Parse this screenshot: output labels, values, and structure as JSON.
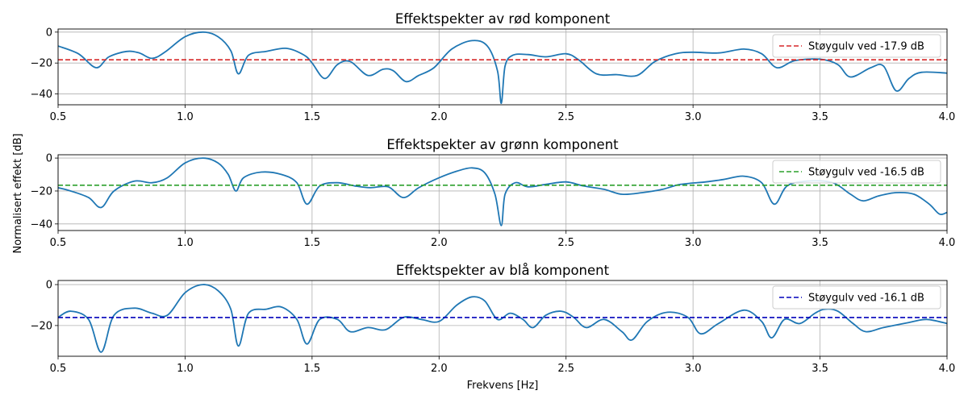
{
  "figure": {
    "ylabel": "Normalisert effekt [dB]",
    "xlabel": "Frekvens [Hz]"
  },
  "chart_data": [
    {
      "type": "line",
      "title": "Effektspekter av rød komponent",
      "xlim": [
        0.5,
        4.0
      ],
      "ylim": [
        -47,
        2
      ],
      "xticks": [
        "0.5",
        "1.0",
        "1.5",
        "2.0",
        "2.5",
        "3.0",
        "3.5",
        "4.0"
      ],
      "yticks": [
        0,
        -20,
        -40
      ],
      "ytick_labels": [
        "0",
        "−20",
        "−40"
      ],
      "grid": true,
      "legend": "top-right",
      "spectrum_color": "#1f77b4",
      "noise_floor": {
        "label": "Støygulv ved -17.9 dB",
        "value": -17.9,
        "color": "#d62728"
      },
      "series": [
        {
          "x": [
            0.5,
            0.58,
            0.65,
            0.7,
            0.77,
            0.82,
            0.87,
            0.92,
            1.0,
            1.07,
            1.13,
            1.18,
            1.21,
            1.25,
            1.32,
            1.4,
            1.47,
            1.5,
            1.55,
            1.6,
            1.65,
            1.72,
            1.78,
            1.82,
            1.87,
            1.92,
            1.98,
            2.05,
            2.13,
            2.19,
            2.23,
            2.245,
            2.26,
            2.29,
            2.35,
            2.42,
            2.5,
            2.55,
            2.62,
            2.7,
            2.78,
            2.85,
            2.93,
            3.0,
            3.1,
            3.2,
            3.27,
            3.33,
            3.4,
            3.5,
            3.57,
            3.62,
            3.7,
            3.75,
            3.8,
            3.85,
            3.9,
            4.0
          ],
          "y": [
            -9,
            -14,
            -23,
            -16,
            -12.5,
            -13.5,
            -17,
            -13,
            -3,
            0,
            -3,
            -12,
            -27,
            -15,
            -12.5,
            -10.5,
            -15,
            -20,
            -30,
            -21,
            -19,
            -28,
            -24,
            -25,
            -32,
            -28,
            -23,
            -11,
            -5.5,
            -9,
            -25,
            -46,
            -22,
            -15,
            -14.5,
            -16,
            -14,
            -18,
            -27,
            -27.5,
            -28,
            -19,
            -14,
            -13,
            -13.5,
            -11,
            -14,
            -23,
            -18.5,
            -17.5,
            -21,
            -29,
            -23,
            -22,
            -38,
            -30,
            -26,
            -26.5
          ]
        }
      ]
    },
    {
      "type": "line",
      "title": "Effektspekter av grønn komponent",
      "xlim": [
        0.5,
        4.0
      ],
      "ylim": [
        -44,
        2
      ],
      "xticks": [
        "0.5",
        "1.0",
        "1.5",
        "2.0",
        "2.5",
        "3.0",
        "3.5",
        "4.0"
      ],
      "yticks": [
        0,
        -20,
        -40
      ],
      "ytick_labels": [
        "0",
        "−20",
        "−40"
      ],
      "grid": true,
      "legend": "top-right",
      "spectrum_color": "#1f77b4",
      "noise_floor": {
        "label": "Støygulv ved -16.5 dB",
        "value": -16.5,
        "color": "#2ca02c"
      },
      "series": [
        {
          "x": [
            0.5,
            0.55,
            0.62,
            0.67,
            0.72,
            0.8,
            0.87,
            0.93,
            1.0,
            1.07,
            1.13,
            1.17,
            1.2,
            1.23,
            1.3,
            1.38,
            1.44,
            1.48,
            1.53,
            1.6,
            1.67,
            1.73,
            1.8,
            1.86,
            1.92,
            2.0,
            2.07,
            2.13,
            2.18,
            2.22,
            2.245,
            2.26,
            2.3,
            2.35,
            2.42,
            2.5,
            2.57,
            2.65,
            2.72,
            2.8,
            2.88,
            2.95,
            3.05,
            3.12,
            3.2,
            3.27,
            3.32,
            3.37,
            3.45,
            3.55,
            3.62,
            3.67,
            3.73,
            3.8,
            3.87,
            3.93,
            3.97,
            4.0
          ],
          "y": [
            -18,
            -20,
            -24,
            -30,
            -20,
            -14,
            -15,
            -12,
            -3,
            0,
            -3,
            -10,
            -20,
            -12,
            -8.5,
            -10,
            -15,
            -28,
            -17,
            -15,
            -17,
            -18,
            -17.5,
            -24,
            -18,
            -12,
            -8,
            -6,
            -9,
            -22,
            -41,
            -22,
            -15,
            -17.5,
            -16,
            -14.5,
            -17,
            -19,
            -22,
            -21,
            -19,
            -16,
            -14.5,
            -13,
            -11,
            -15,
            -28,
            -17,
            -14,
            -15,
            -22,
            -26,
            -23,
            -21,
            -22,
            -28,
            -34,
            -33
          ]
        }
      ]
    },
    {
      "type": "line",
      "title": "Effektspekter av blå komponent",
      "xlim": [
        0.5,
        4.0
      ],
      "ylim": [
        -35,
        2
      ],
      "xticks": [
        "0.5",
        "1.0",
        "1.5",
        "2.0",
        "2.5",
        "3.0",
        "3.5",
        "4.0"
      ],
      "yticks": [
        0,
        -20
      ],
      "ytick_labels": [
        "0",
        "−20"
      ],
      "grid": true,
      "legend": "top-right",
      "spectrum_color": "#1f77b4",
      "noise_floor": {
        "label": "Støygulv ved -16.1 dB",
        "value": -16.1,
        "color": "#0000bb"
      },
      "series": [
        {
          "x": [
            0.5,
            0.55,
            0.62,
            0.67,
            0.72,
            0.8,
            0.87,
            0.93,
            1.0,
            1.07,
            1.13,
            1.18,
            1.21,
            1.25,
            1.32,
            1.38,
            1.44,
            1.48,
            1.53,
            1.6,
            1.65,
            1.72,
            1.79,
            1.86,
            1.93,
            2.0,
            2.07,
            2.13,
            2.18,
            2.23,
            2.28,
            2.33,
            2.37,
            2.42,
            2.48,
            2.53,
            2.58,
            2.65,
            2.72,
            2.76,
            2.82,
            2.9,
            2.98,
            3.03,
            3.1,
            3.2,
            3.27,
            3.31,
            3.36,
            3.42,
            3.48,
            3.52,
            3.57,
            3.63,
            3.68,
            3.75,
            3.85,
            3.92,
            4.0
          ],
          "y": [
            -16,
            -13,
            -17,
            -33,
            -15,
            -11.5,
            -14,
            -15,
            -4,
            0,
            -3,
            -12,
            -30,
            -14,
            -12,
            -11,
            -17,
            -29,
            -17,
            -17,
            -23,
            -21,
            -22,
            -16,
            -17,
            -18,
            -10,
            -6,
            -8,
            -17,
            -14,
            -17,
            -21,
            -15,
            -13,
            -16,
            -21,
            -17,
            -23,
            -27,
            -18,
            -13.5,
            -16,
            -24,
            -19,
            -12.5,
            -18,
            -26,
            -17,
            -19,
            -14,
            -12,
            -13,
            -19,
            -23,
            -21,
            -18.5,
            -17,
            -19
          ]
        }
      ]
    }
  ]
}
